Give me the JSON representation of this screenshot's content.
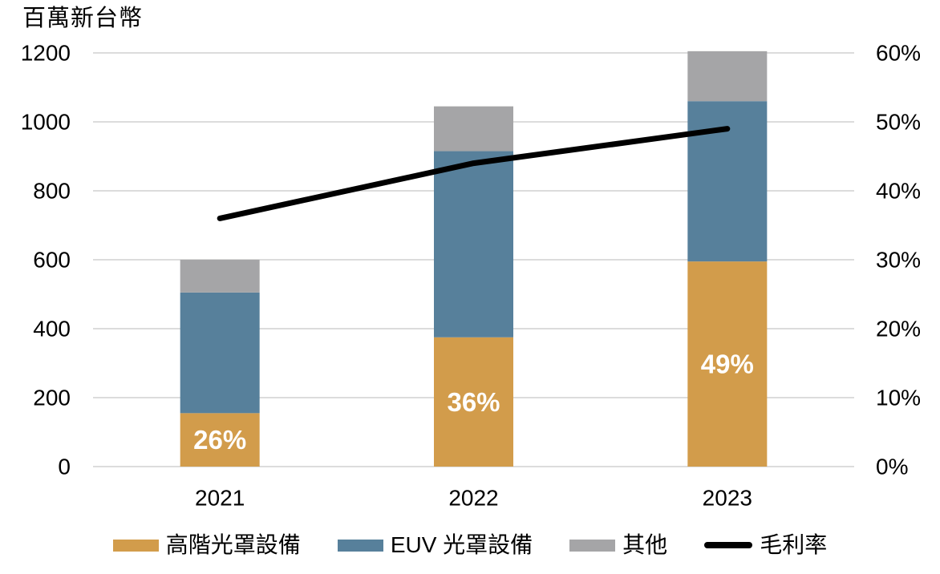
{
  "chart_data": {
    "type": "bar",
    "subtype": "stacked-bars-with-line-overlay",
    "title": "",
    "unit_label": "百萬新台幣",
    "categories": [
      "2021",
      "2022",
      "2023"
    ],
    "series": [
      {
        "name": "高階光罩設備",
        "type": "bar",
        "color": "#D29C4B",
        "values": [
          155,
          375,
          595
        ]
      },
      {
        "name": "EUV 光罩設備",
        "type": "bar",
        "color": "#57809B",
        "values": [
          350,
          540,
          465
        ]
      },
      {
        "name": "其他",
        "type": "bar",
        "color": "#A5A5A7",
        "values": [
          95,
          130,
          145
        ]
      },
      {
        "name": "毛利率",
        "type": "line",
        "color": "#000000",
        "values_pct": [
          36,
          44,
          49
        ]
      }
    ],
    "bar_totals": [
      600,
      1045,
      1205
    ],
    "bar_labels": [
      "26%",
      "36%",
      "49%"
    ],
    "y_left": {
      "min": 0,
      "max": 1200,
      "step": 200,
      "ticks": [
        "0",
        "200",
        "400",
        "600",
        "800",
        "1000",
        "1200"
      ]
    },
    "y_right": {
      "min": 0,
      "max": 60,
      "step": 10,
      "ticks": [
        "0%",
        "10%",
        "20%",
        "30%",
        "40%",
        "50%",
        "60%"
      ]
    },
    "grid": true,
    "gridline_color": "#DCDCDC",
    "legend_position": "bottom"
  }
}
